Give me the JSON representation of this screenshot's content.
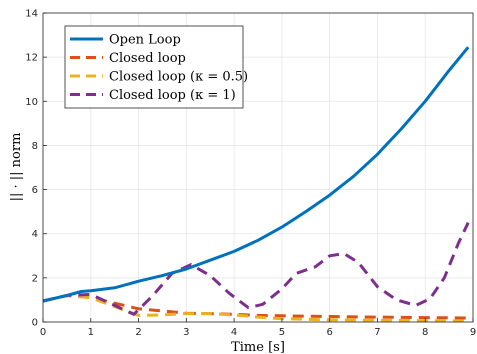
{
  "chart_data": {
    "type": "line",
    "title": "",
    "xlabel": "Time [s]",
    "ylabel": "|| · || norm",
    "xlim": [
      0,
      9
    ],
    "ylim": [
      0,
      14
    ],
    "xticks": [
      "0",
      "1",
      "2",
      "3",
      "4",
      "5",
      "6",
      "7",
      "8",
      "9"
    ],
    "yticks": [
      "0",
      "2",
      "4",
      "6",
      "8",
      "10",
      "12",
      "14"
    ],
    "grid": true,
    "legend_position": "top-left",
    "series": [
      {
        "name": "Open Loop",
        "color": "#0072BD",
        "dash": "solid",
        "x": [
          0,
          0.5,
          0.8,
          1.0,
          1.5,
          2.0,
          2.5,
          3.0,
          3.5,
          4.0,
          4.5,
          5.0,
          5.5,
          6.0,
          6.5,
          7.0,
          7.5,
          8.0,
          8.5,
          8.9
        ],
        "y": [
          0.95,
          1.2,
          1.38,
          1.42,
          1.55,
          1.85,
          2.1,
          2.4,
          2.8,
          3.2,
          3.7,
          4.3,
          5.0,
          5.75,
          6.6,
          7.6,
          8.75,
          10.0,
          11.4,
          12.45
        ]
      },
      {
        "name": "Closed loop",
        "color": "#D95319",
        "dash": "dashed",
        "x": [
          0,
          0.5,
          1.0,
          1.5,
          2.0,
          2.5,
          3.0,
          3.5,
          4.0,
          4.5,
          5.0,
          6.0,
          7.0,
          8.0,
          8.9
        ],
        "y": [
          0.95,
          1.2,
          1.1,
          0.85,
          0.6,
          0.5,
          0.4,
          0.38,
          0.35,
          0.3,
          0.28,
          0.25,
          0.22,
          0.2,
          0.18
        ]
      },
      {
        "name": "Closed loop (κ = 0.5)",
        "color": "#EDB120",
        "dash": "dashed",
        "x": [
          0,
          0.5,
          1.0,
          1.5,
          2.0,
          2.5,
          3.0,
          3.5,
          4.0,
          4.5,
          5.0,
          6.0,
          7.0,
          8.0,
          8.9
        ],
        "y": [
          0.95,
          1.2,
          1.1,
          0.7,
          0.3,
          0.32,
          0.38,
          0.38,
          0.32,
          0.22,
          0.15,
          0.1,
          0.08,
          0.06,
          0.05
        ]
      },
      {
        "name": "Closed loop (κ = 1)",
        "color": "#7E2F8E",
        "dash": "dashed",
        "x": [
          0,
          0.5,
          1.0,
          1.5,
          1.9,
          2.3,
          2.7,
          3.1,
          3.5,
          3.9,
          4.3,
          4.6,
          5.0,
          5.3,
          5.7,
          6.0,
          6.3,
          6.6,
          7.0,
          7.4,
          7.8,
          8.1,
          8.4,
          8.7,
          8.9
        ],
        "y": [
          0.95,
          1.2,
          1.25,
          0.75,
          0.35,
          1.2,
          2.2,
          2.6,
          2.1,
          1.3,
          0.65,
          0.8,
          1.5,
          2.2,
          2.5,
          3.0,
          3.1,
          2.7,
          1.6,
          1.0,
          0.75,
          1.05,
          2.0,
          3.6,
          4.5
        ]
      }
    ]
  }
}
